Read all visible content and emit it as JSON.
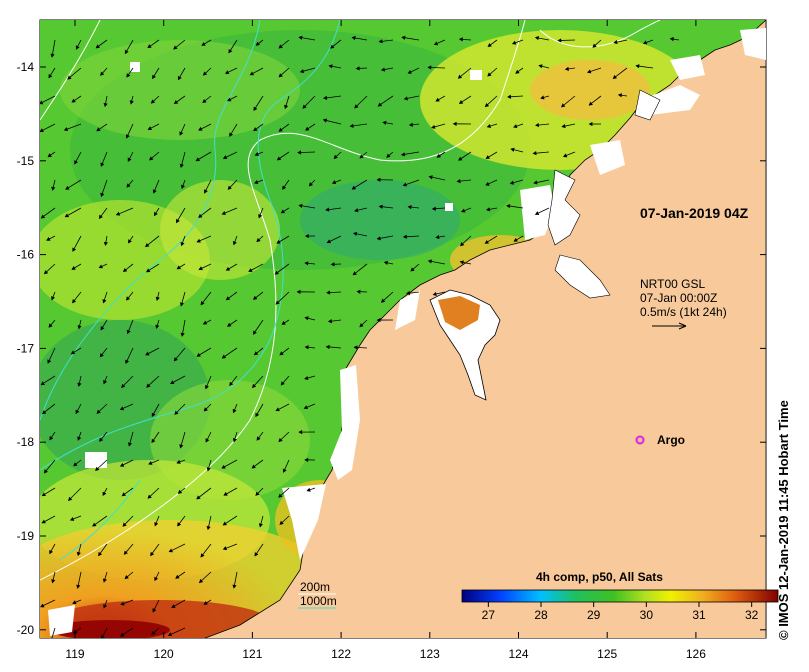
{
  "map": {
    "lon_ticks": [
      "119",
      "120",
      "121",
      "122",
      "123",
      "124",
      "125",
      "126"
    ],
    "lat_ticks": [
      "-14",
      "-15",
      "-16",
      "-17",
      "-18",
      "-19",
      "-20"
    ],
    "stamp_label": "07-Jan-2019 04Z",
    "current_legend": {
      "line1": "NRT00 GSL",
      "line2": "07-Jan 00:00Z",
      "line3": "0.5m/s (1kt 24h)"
    },
    "argo_label": "Argo",
    "contour_legend": {
      "c200": "200m",
      "c1000": "1000m"
    },
    "colorbar": {
      "title": "4h comp, p50, All Sats",
      "ticks": [
        "27",
        "28",
        "29",
        "30",
        "31",
        "32"
      ],
      "unit_range": [
        26.5,
        32.5
      ]
    },
    "credit": "© IMOS 12-Jan-2019 11:45 Hobart Time",
    "colors": {
      "land": "#f8c99a",
      "cloud": "#ffffff",
      "contour200": "#ffffff",
      "contour1000": "#40e0d0",
      "argo": "#e020e0"
    }
  }
}
